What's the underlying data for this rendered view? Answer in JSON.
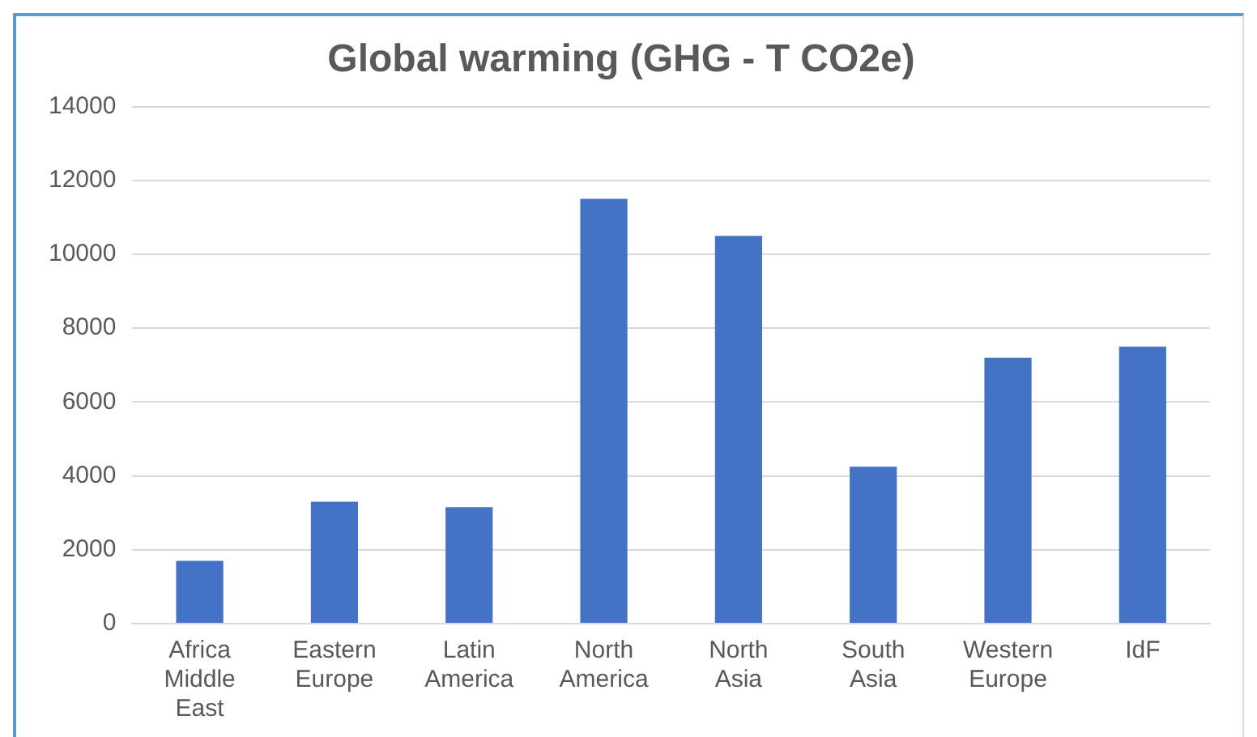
{
  "chart_data": {
    "type": "bar",
    "title": "Global warming (GHG - T CO2e)",
    "categories": [
      "Africa Middle East",
      "Eastern Europe",
      "Latin America",
      "North America",
      "North Asia",
      "South Asia",
      "Western Europe",
      "IdF"
    ],
    "values": [
      1700,
      3300,
      3150,
      11500,
      10500,
      4250,
      7200,
      7500
    ],
    "color": "#4472c4",
    "ylim": [
      0,
      14000
    ],
    "yticks": [
      0,
      2000,
      4000,
      6000,
      8000,
      10000,
      12000,
      14000
    ],
    "grid": "y",
    "legend": false
  }
}
